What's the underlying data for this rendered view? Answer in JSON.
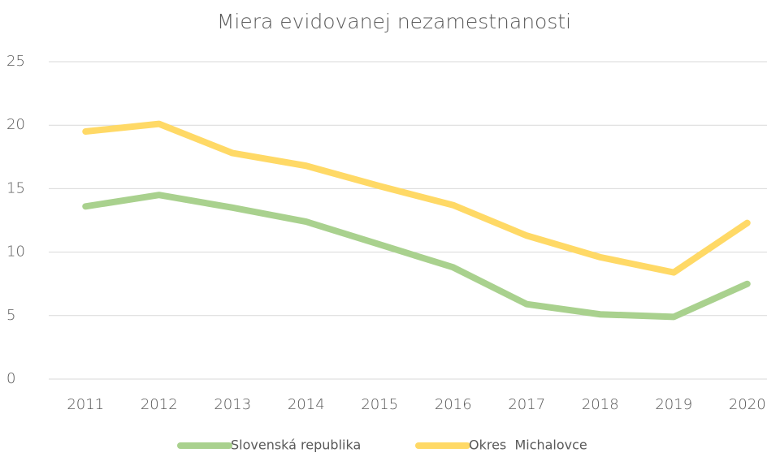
{
  "chart_data": {
    "type": "line",
    "title": "Miera evidovanej nezamestnanosti",
    "categories": [
      "2011",
      "2012",
      "2013",
      "2014",
      "2015",
      "2016",
      "2017",
      "2018",
      "2019",
      "2020"
    ],
    "series": [
      {
        "name": "Slovenská republika",
        "color": "#a9d18e",
        "values": [
          13.6,
          14.5,
          13.5,
          12.4,
          10.6,
          8.8,
          5.9,
          5.1,
          4.9,
          7.5
        ]
      },
      {
        "name": "Okres  Michalovce",
        "color": "#ffd966",
        "values": [
          19.5,
          20.1,
          17.8,
          16.8,
          15.2,
          13.7,
          11.3,
          9.6,
          8.4,
          12.3
        ]
      }
    ],
    "ylim": [
      0,
      25
    ],
    "yticks": [
      0,
      5,
      10,
      15,
      20,
      25
    ],
    "grid": true,
    "legend": "bottom"
  }
}
